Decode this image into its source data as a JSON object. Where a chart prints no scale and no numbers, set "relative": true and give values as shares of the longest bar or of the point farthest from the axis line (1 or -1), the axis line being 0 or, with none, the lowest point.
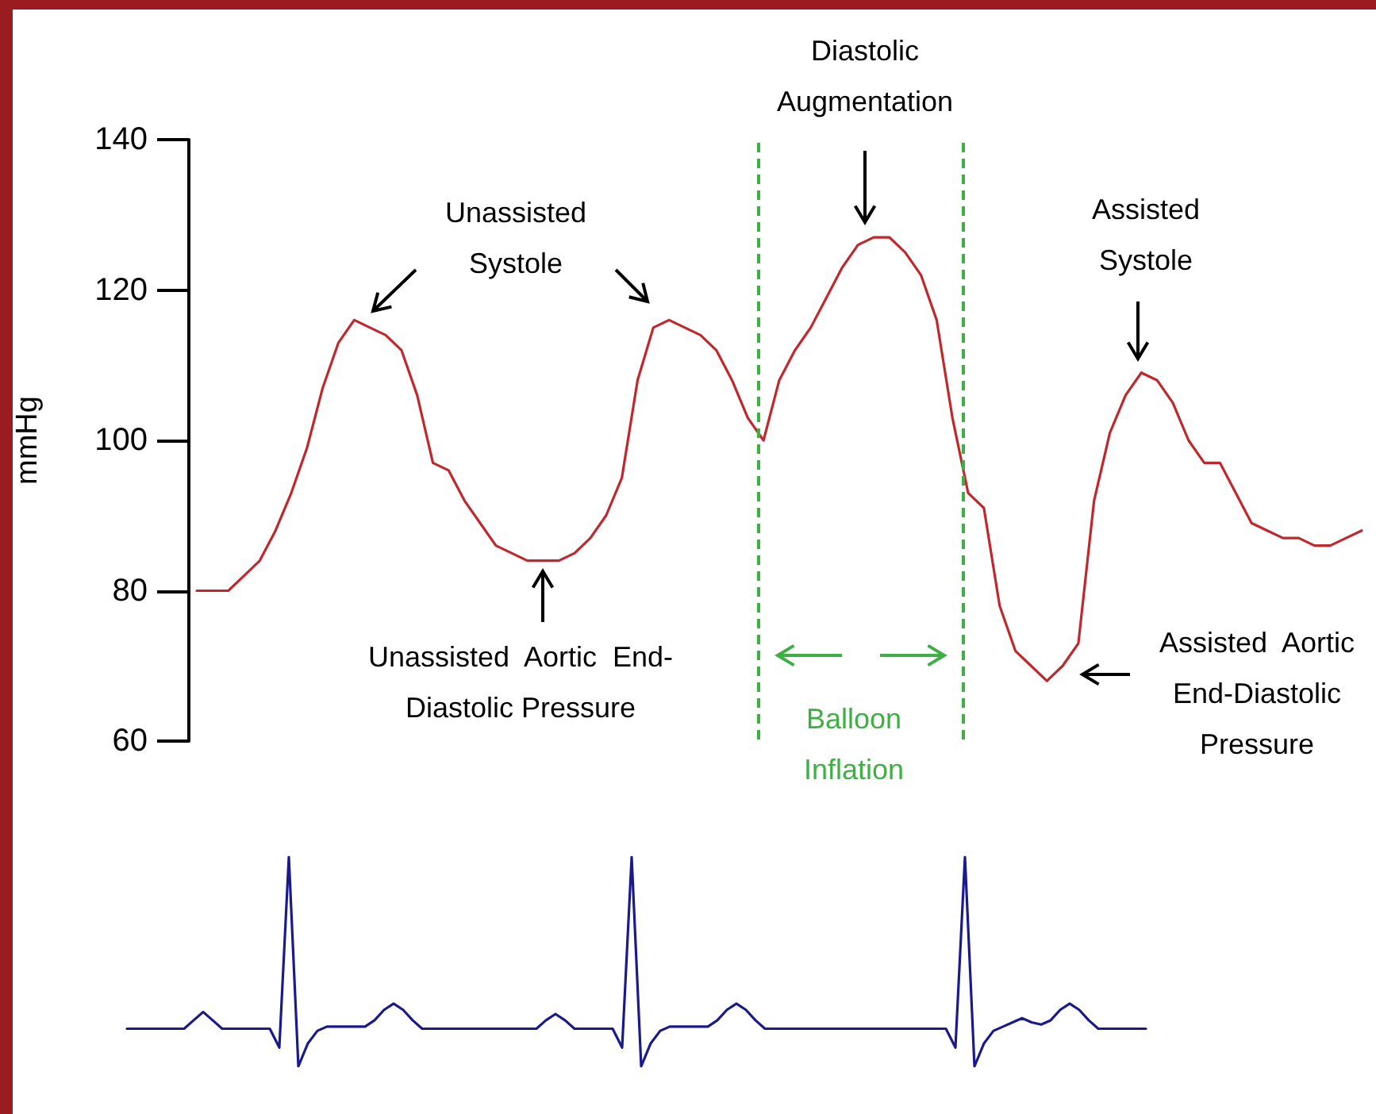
{
  "chart_data": [
    {
      "type": "line",
      "ylabel": "mmHg",
      "ylim": [
        60,
        140
      ],
      "yticks": [
        60,
        80,
        100,
        120,
        140
      ],
      "tick_labels": "y",
      "categories": [
        null,
        null,
        null,
        null,
        null,
        null,
        null,
        null,
        null,
        null,
        null,
        null,
        null,
        null,
        null,
        null,
        null,
        null,
        null,
        null,
        null,
        null,
        null,
        null,
        null,
        null,
        null,
        null,
        null,
        null,
        null,
        null,
        null,
        null,
        null,
        null,
        null,
        null,
        null,
        null,
        null,
        null,
        null,
        null,
        null,
        null,
        null,
        null,
        null,
        null,
        null,
        null,
        null,
        null,
        null,
        null,
        null,
        null,
        null,
        null,
        null,
        null,
        null,
        null,
        null,
        null,
        null,
        null,
        null,
        null,
        null,
        null,
        null,
        null,
        null
      ],
      "series": [
        {
          "color": "#c0282d",
          "values": [
            80,
            80,
            80,
            82,
            84,
            88,
            93,
            99,
            107,
            113,
            116,
            115,
            114,
            112,
            106,
            97,
            96,
            92,
            89,
            86,
            85,
            84,
            84,
            84,
            85,
            87,
            90,
            95,
            108,
            115,
            116,
            115,
            114,
            112,
            108,
            103,
            100,
            108,
            112,
            115,
            119,
            123,
            126,
            127,
            127,
            125,
            122,
            116,
            103,
            93,
            91,
            78,
            72,
            70,
            68,
            70,
            73,
            92,
            101,
            106,
            109,
            108,
            105,
            100,
            97,
            97,
            93,
            89,
            88,
            87,
            87,
            86,
            86,
            87,
            88
          ]
        }
      ],
      "annotations": [
        "Balloon\nInflation",
        "Unassisted\nSystole",
        "Diastolic\nAugmentation",
        "Assisted\nSystole",
        "Unassisted  Aortic  End-\nDiastolic Pressure",
        "Assisted  Aortic\nEnd-Diastolic\nPressure"
      ]
    },
    {
      "type": "line",
      "relative": true,
      "tick_labels": false,
      "categories": [
        null,
        null,
        null,
        null,
        null,
        null,
        null,
        null,
        null,
        null,
        null,
        null,
        null,
        null,
        null,
        null,
        null,
        null,
        null,
        null,
        null,
        null,
        null,
        null,
        null,
        null,
        null,
        null,
        null,
        null,
        null,
        null,
        null,
        null,
        null,
        null,
        null,
        null,
        null,
        null,
        null,
        null,
        null,
        null,
        null,
        null,
        null,
        null,
        null,
        null,
        null,
        null,
        null,
        null,
        null,
        null,
        null,
        null,
        null,
        null,
        null,
        null,
        null,
        null,
        null,
        null,
        null,
        null,
        null,
        null,
        null,
        null,
        null,
        null,
        null,
        null,
        null,
        null,
        null,
        null,
        null,
        null,
        null,
        null,
        null,
        null,
        null,
        null,
        null,
        null,
        null,
        null,
        null,
        null,
        null,
        null,
        null,
        null,
        null,
        null,
        null,
        null,
        null,
        null,
        null,
        null,
        null,
        null
      ],
      "series": [
        {
          "color": "#1a1a8c",
          "values": [
            0.18,
            0.18,
            0.18,
            0.18,
            0.18,
            0.18,
            0.18,
            0.22,
            0.26,
            0.22,
            0.18,
            0.18,
            0.18,
            0.18,
            0.18,
            0.18,
            0.09,
            1,
            0,
            0.11,
            0.17,
            0.19,
            0.19,
            0.19,
            0.19,
            0.19,
            0.22,
            0.27,
            0.3,
            0.27,
            0.22,
            0.18,
            0.18,
            0.18,
            0.18,
            0.18,
            0.18,
            0.18,
            0.18,
            0.18,
            0.18,
            0.18,
            0.18,
            0.18,
            0.22,
            0.25,
            0.22,
            0.18,
            0.18,
            0.18,
            0.18,
            0.18,
            0.09,
            1,
            0,
            0.11,
            0.17,
            0.19,
            0.19,
            0.19,
            0.19,
            0.19,
            0.22,
            0.27,
            0.3,
            0.27,
            0.22,
            0.18,
            0.18,
            0.18,
            0.18,
            0.18,
            0.18,
            0.18,
            0.18,
            0.18,
            0.18,
            0.18,
            0.18,
            0.18,
            0.18,
            0.18,
            0.18,
            0.18,
            0.18,
            0.18,
            0.18,
            0.09,
            1,
            0,
            0.11,
            0.17,
            0.19,
            0.21,
            0.23,
            0.21,
            0.2,
            0.22,
            0.27,
            0.3,
            0.27,
            0.22,
            0.18,
            0.18,
            0.18,
            0.18,
            0.18,
            0.18
          ]
        }
      ]
    }
  ]
}
